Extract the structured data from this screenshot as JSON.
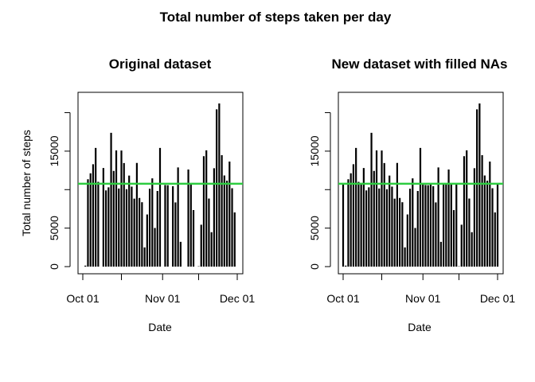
{
  "figure": {
    "title": "Total number of steps taken per day"
  },
  "colors": {
    "bar": "#000000",
    "mean_line": "#2ecc40",
    "axis": "#000000",
    "background": "#ffffff"
  },
  "chart_data": [
    {
      "type": "bar",
      "title": "Original dataset",
      "xlabel": "Date",
      "ylabel": "Total number of steps",
      "x_tick_labels": [
        "Oct 01",
        "Nov 01",
        "Dec 01"
      ],
      "y_tick_labels": [
        "0",
        "5000",
        "15000"
      ],
      "y_ticks": [
        0,
        5000,
        10000,
        15000,
        20000
      ],
      "xlim": [
        "2012-10-01",
        "2012-11-30"
      ],
      "ylim": [
        0,
        21194
      ],
      "mean_line": 10766,
      "mean_line_label": "",
      "categories": [
        "2012-10-01",
        "2012-10-02",
        "2012-10-03",
        "2012-10-04",
        "2012-10-05",
        "2012-10-06",
        "2012-10-07",
        "2012-10-08",
        "2012-10-09",
        "2012-10-10",
        "2012-10-11",
        "2012-10-12",
        "2012-10-13",
        "2012-10-14",
        "2012-10-15",
        "2012-10-16",
        "2012-10-17",
        "2012-10-18",
        "2012-10-19",
        "2012-10-20",
        "2012-10-21",
        "2012-10-22",
        "2012-10-23",
        "2012-10-24",
        "2012-10-25",
        "2012-10-26",
        "2012-10-27",
        "2012-10-28",
        "2012-10-29",
        "2012-10-30",
        "2012-10-31",
        "2012-11-01",
        "2012-11-02",
        "2012-11-03",
        "2012-11-04",
        "2012-11-05",
        "2012-11-06",
        "2012-11-07",
        "2012-11-08",
        "2012-11-09",
        "2012-11-10",
        "2012-11-11",
        "2012-11-12",
        "2012-11-13",
        "2012-11-14",
        "2012-11-15",
        "2012-11-16",
        "2012-11-17",
        "2012-11-18",
        "2012-11-19",
        "2012-11-20",
        "2012-11-21",
        "2012-11-22",
        "2012-11-23",
        "2012-11-24",
        "2012-11-25",
        "2012-11-26",
        "2012-11-27",
        "2012-11-28",
        "2012-11-29",
        "2012-11-30"
      ],
      "values": [
        0,
        126,
        11352,
        12116,
        13294,
        15420,
        11015,
        0,
        12811,
        9900,
        10304,
        17382,
        12426,
        15098,
        10139,
        15084,
        13452,
        10056,
        11829,
        10395,
        8821,
        13460,
        8918,
        8355,
        2492,
        6778,
        10119,
        11458,
        5018,
        9819,
        15414,
        0,
        10600,
        10571,
        0,
        10439,
        8334,
        12883,
        3219,
        0,
        0,
        12608,
        10765,
        7336,
        0,
        41,
        5441,
        14339,
        15110,
        8841,
        4472,
        12787,
        20427,
        21194,
        14478,
        11834,
        11162,
        13646,
        10183,
        7047,
        0
      ]
    },
    {
      "type": "bar",
      "title": "New dataset with filled NAs",
      "xlabel": "Date",
      "ylabel": "",
      "x_tick_labels": [
        "Oct 01",
        "Nov 01",
        "Dec 01"
      ],
      "y_tick_labels": [
        "0",
        "5000",
        "15000"
      ],
      "y_ticks": [
        0,
        5000,
        10000,
        15000,
        20000
      ],
      "xlim": [
        "2012-10-01",
        "2012-11-30"
      ],
      "ylim": [
        0,
        21194
      ],
      "mean_line": 10766,
      "mean_line_label": "",
      "categories": [
        "2012-10-01",
        "2012-10-02",
        "2012-10-03",
        "2012-10-04",
        "2012-10-05",
        "2012-10-06",
        "2012-10-07",
        "2012-10-08",
        "2012-10-09",
        "2012-10-10",
        "2012-10-11",
        "2012-10-12",
        "2012-10-13",
        "2012-10-14",
        "2012-10-15",
        "2012-10-16",
        "2012-10-17",
        "2012-10-18",
        "2012-10-19",
        "2012-10-20",
        "2012-10-21",
        "2012-10-22",
        "2012-10-23",
        "2012-10-24",
        "2012-10-25",
        "2012-10-26",
        "2012-10-27",
        "2012-10-28",
        "2012-10-29",
        "2012-10-30",
        "2012-10-31",
        "2012-11-01",
        "2012-11-02",
        "2012-11-03",
        "2012-11-04",
        "2012-11-05",
        "2012-11-06",
        "2012-11-07",
        "2012-11-08",
        "2012-11-09",
        "2012-11-10",
        "2012-11-11",
        "2012-11-12",
        "2012-11-13",
        "2012-11-14",
        "2012-11-15",
        "2012-11-16",
        "2012-11-17",
        "2012-11-18",
        "2012-11-19",
        "2012-11-20",
        "2012-11-21",
        "2012-11-22",
        "2012-11-23",
        "2012-11-24",
        "2012-11-25",
        "2012-11-26",
        "2012-11-27",
        "2012-11-28",
        "2012-11-29",
        "2012-11-30"
      ],
      "values": [
        10766,
        126,
        11352,
        12116,
        13294,
        15420,
        11015,
        10766,
        12811,
        9900,
        10304,
        17382,
        12426,
        15098,
        10139,
        15084,
        13452,
        10056,
        11829,
        10395,
        8821,
        13460,
        8918,
        8355,
        2492,
        6778,
        10119,
        11458,
        5018,
        9819,
        15414,
        10766,
        10600,
        10571,
        10766,
        10439,
        8334,
        12883,
        3219,
        10766,
        10766,
        12608,
        10765,
        7336,
        10766,
        41,
        5441,
        14339,
        15110,
        8841,
        4472,
        12787,
        20427,
        21194,
        14478,
        11834,
        11162,
        13646,
        10183,
        7047,
        10766
      ]
    }
  ]
}
